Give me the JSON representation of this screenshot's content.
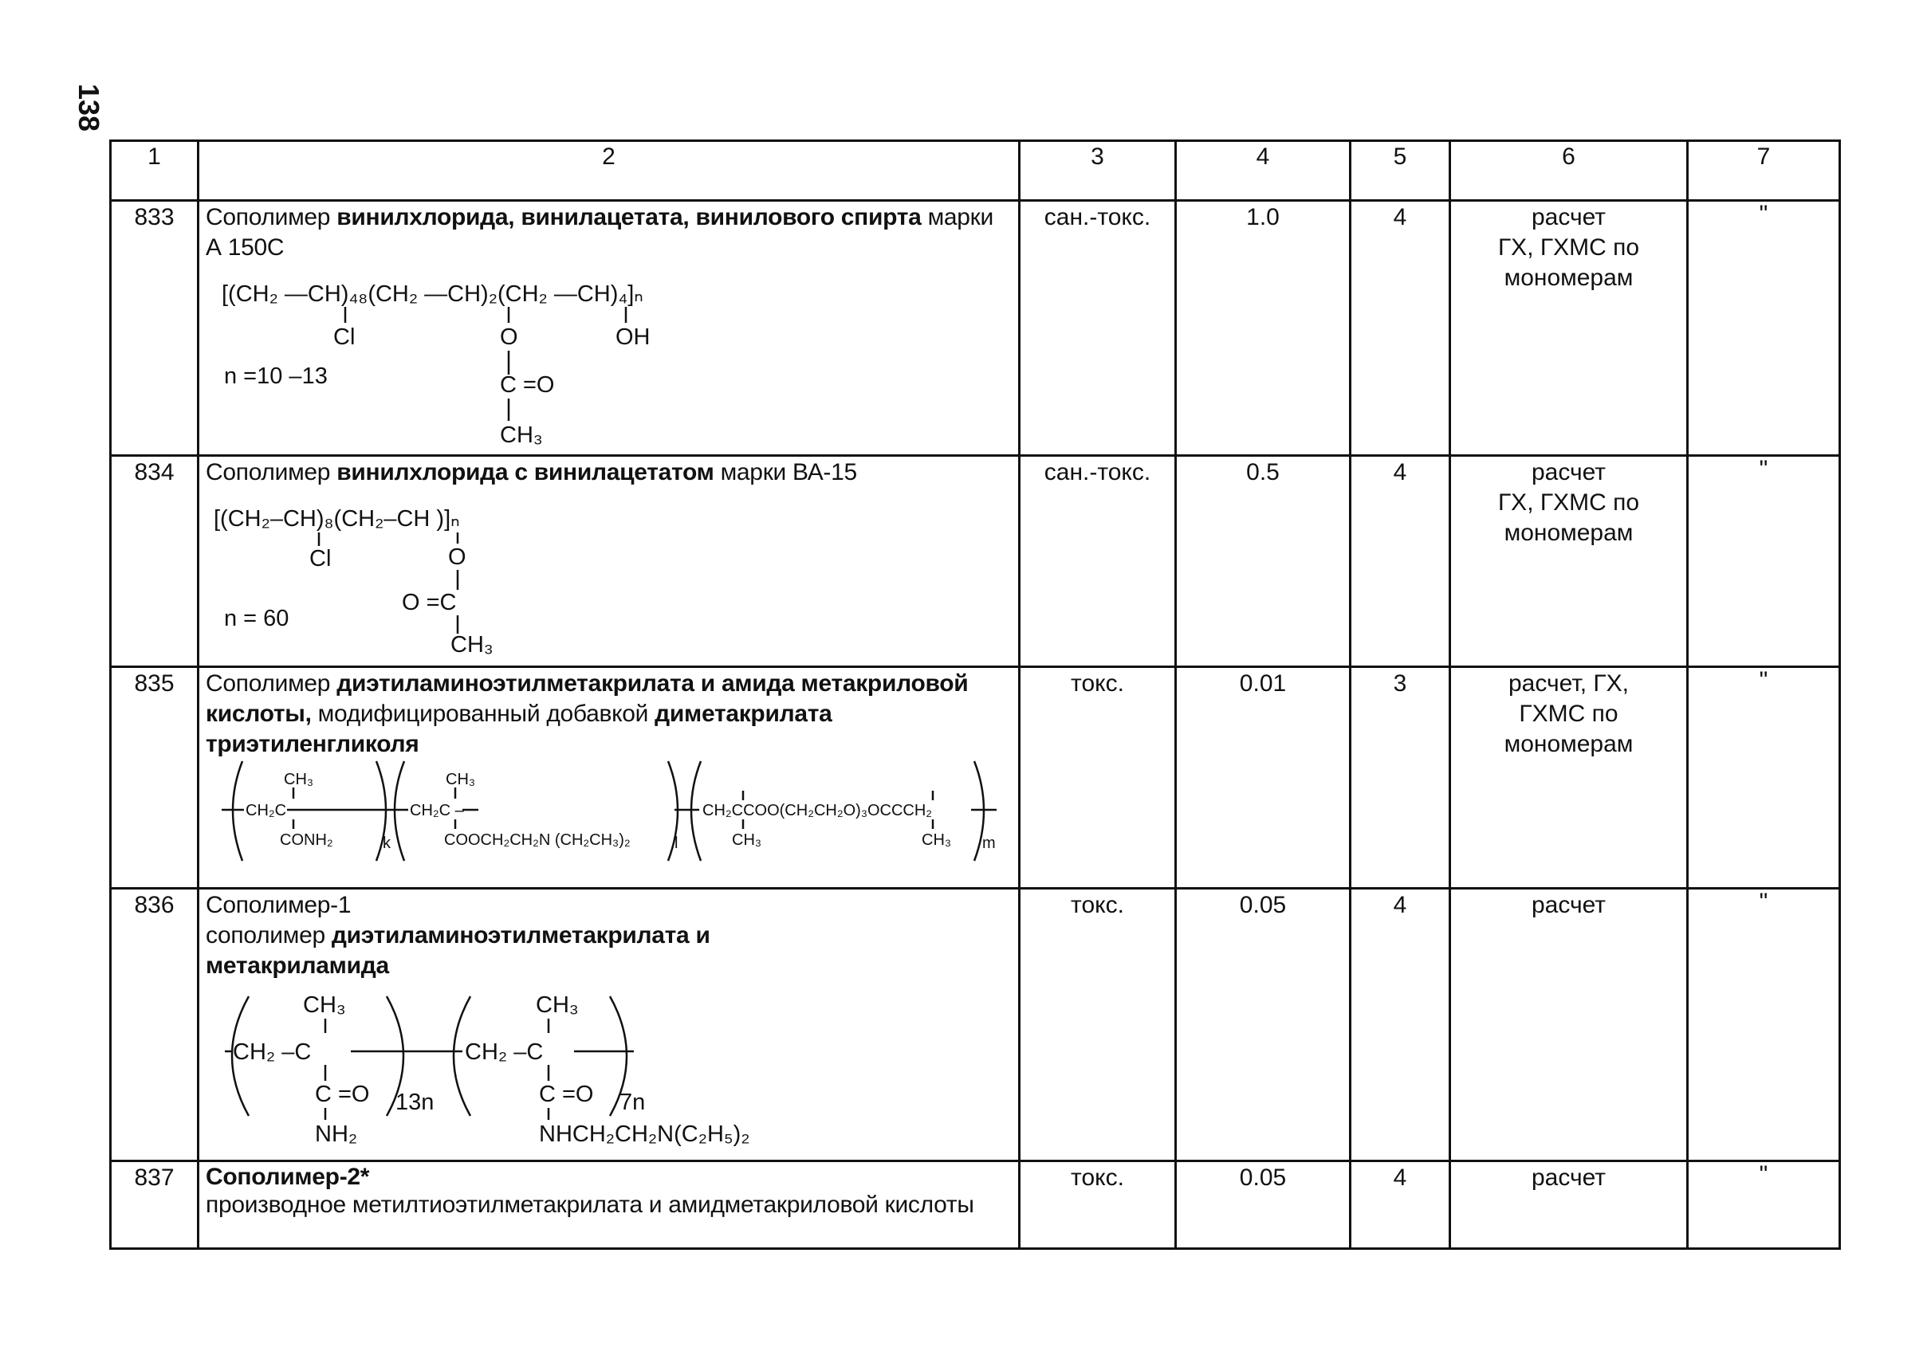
{
  "page_number": "138",
  "headers": [
    "1",
    "2",
    "3",
    "4",
    "5",
    "6",
    "7"
  ],
  "rows": [
    {
      "num": "833",
      "name_parts": [
        "Сополимер ",
        "винилхлорида, винилацетата, винилового спирта",
        " марки А 150С"
      ],
      "col3": "сан.-токс.",
      "col4": "1.0",
      "col5": "4",
      "col6": [
        "расчет",
        "ГХ,  ГХМС по",
        "мономерам"
      ],
      "col7": "\""
    },
    {
      "num": "834",
      "name_parts": [
        "Сополимер ",
        "винилхлорида с винилацетатом",
        " марки ВА-15"
      ],
      "col3": "сан.-токс.",
      "col4": "0.5",
      "col5": "4",
      "col6": [
        "расчет",
        "ГХ,  ГХМС по",
        "мономерам"
      ],
      "col7": "\""
    },
    {
      "num": "835",
      "name_parts": [
        "Сополимер ",
        "диэтиламиноэтилметакрилата и амида метакриловой кислоты,",
        " модифицированный добавкой ",
        "диметакрилата триэтиленгликоля"
      ],
      "col3": "токс.",
      "col4": "0.01",
      "col5": "3",
      "col6": [
        "расчет, ГХ,",
        "ГХМС по",
        "мономерам"
      ],
      "col7": "\""
    },
    {
      "num": "836",
      "name_parts": [
        "Сополимер-1",
        "сополимер ",
        "диэтиламиноэтилметакрилата и метакриламида"
      ],
      "col3": "токс.",
      "col4": "0.05",
      "col5": "4",
      "col6": [
        "расчет"
      ],
      "col7": "\""
    },
    {
      "num": "837",
      "name_parts": [
        "Сополимер-2*",
        "производное метилтиоэтилметакрилата и амидметакриловой кислоты"
      ],
      "col3": "токс.",
      "col4": "0.05",
      "col5": "4",
      "col6": [
        "расчет"
      ],
      "col7": "\""
    }
  ],
  "formulas": {
    "f833": {
      "chain": "[(CH₂ —CH)₄₈(CH₂ —CH)₂(CH₂ —CH)₄]ₙ",
      "cl": "Cl",
      "o": "O",
      "oh": "OH",
      "n": "n =10 –13",
      "co": "C =O",
      "ch3": "CH₃"
    },
    "f834": {
      "chain": "[(CH₂–CH)₈(CH₂–CH )]ₙ",
      "cl": "Cl",
      "o": "O",
      "oc": "O =C",
      "ch3": "CH₃",
      "n": "n = 60"
    },
    "f835": {
      "u1": "CH₂C",
      "u1top": "CH₃",
      "u1bot": "CONH₂",
      "k": "k",
      "u2": "CH₂C –",
      "u2top": "CH₃",
      "u2bot": "COOCH₂CH₂N (CH₂CH₃)₂",
      "l": "l",
      "u3": "CH₂CCOO(CH₂CH₂O)₃OCCCH₂",
      "u3bot1": "CH₃",
      "u3bot2": "CH₃",
      "m": "m"
    },
    "f836": {
      "ch3a": "CH₃",
      "u1": "CH₂ –C",
      "coa": "C =O",
      "nh2": "NH₂",
      "i13": "13n",
      "ch3b": "CH₃",
      "u2": "CH₂ –C",
      "cob": "C =O",
      "i7": "7n",
      "amine": "NHCH₂CH₂N(C₂H₅)₂"
    }
  }
}
